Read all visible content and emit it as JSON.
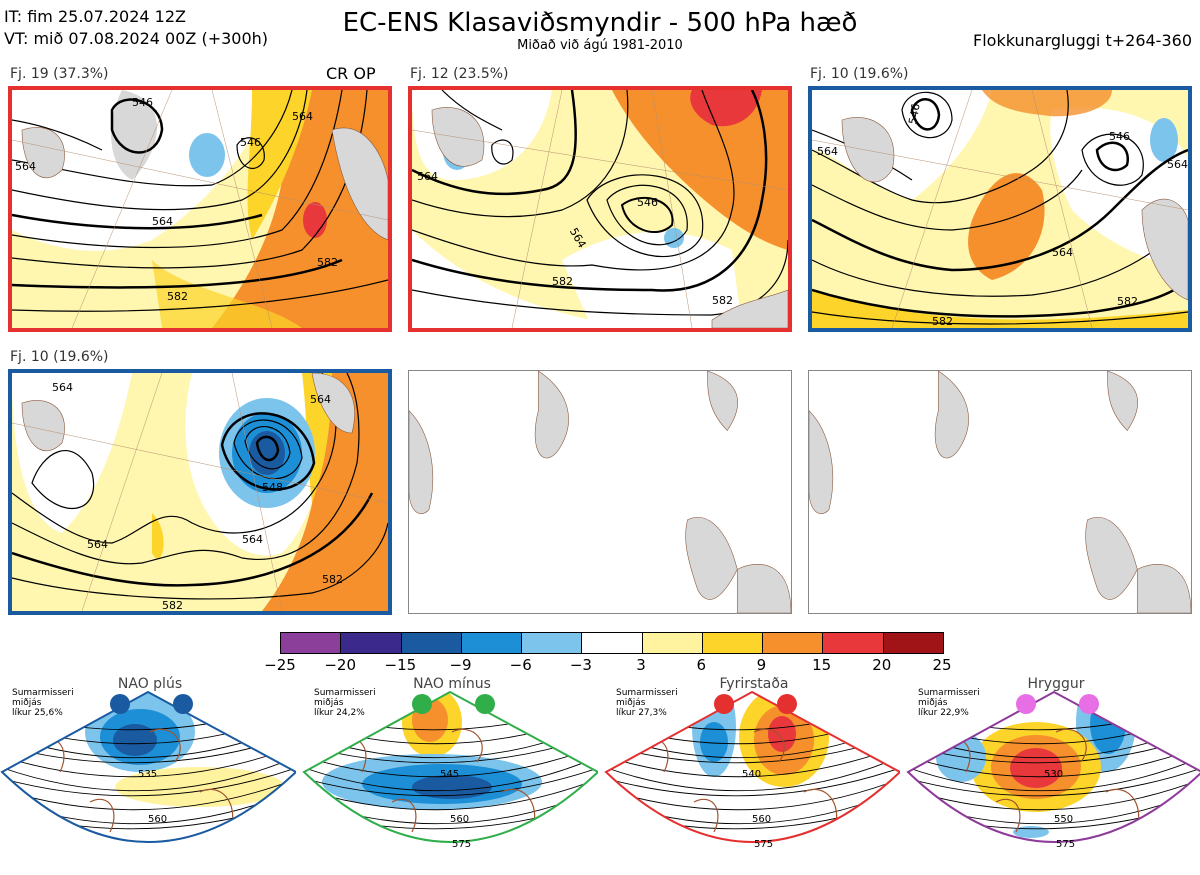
{
  "header": {
    "it_line": "IT: fim 25.07.2024 12Z",
    "vt_line": "VT: mið 07.08.2024 00Z  (+300h)",
    "title": "EC-ENS Klasaviðsmyndir - 500 hPa hæð",
    "subtitle": "Miðað við ágú 1981-2010",
    "window": "Flokkunargluggi t+264-360"
  },
  "panels": [
    {
      "label": "Fj. 19 (37.3%)",
      "extra": "CR OP",
      "border": "#e53030"
    },
    {
      "label": "Fj. 12 (23.5%)",
      "extra": "",
      "border": "#e53030"
    },
    {
      "label": "Fj. 10 (19.6%)",
      "extra": "",
      "border": "#1a5aa0"
    },
    {
      "label": "Fj. 10 (19.6%)",
      "extra": "",
      "border": "#1a5aa0"
    }
  ],
  "contour_labels": {
    "p1": [
      "546",
      "546",
      "564",
      "582",
      "582",
      "564",
      "564",
      "564"
    ],
    "p2": [
      "546",
      "564",
      "582",
      "582",
      "564"
    ],
    "p3": [
      "546",
      "546",
      "564",
      "582",
      "582",
      "564",
      "564"
    ],
    "p4": [
      "548",
      "564",
      "564",
      "582",
      "582",
      "564",
      "564"
    ]
  },
  "colorbar": {
    "colors": [
      "#8c3f9a",
      "#3b2a8c",
      "#1a5aa0",
      "#1d8fd6",
      "#7cc4ec",
      "#ffffff",
      "#fff3a0",
      "#fcd42a",
      "#f5902c",
      "#e8383c",
      "#a01418"
    ],
    "labels": [
      "−25",
      "−20",
      "−15",
      "−9",
      "−6",
      "−3",
      "3",
      "6",
      "9",
      "15",
      "20",
      "25"
    ]
  },
  "regimes": [
    {
      "title": "NAO plús",
      "season": "Sumarmisseri",
      "mean": "miðjás",
      "prob": "líkur 25,6%",
      "dot_color": "#1a5aa0",
      "border": "#1a5aa0",
      "labels": [
        "535",
        "560"
      ]
    },
    {
      "title": "NAO mínus",
      "season": "Sumarmisseri",
      "mean": "miðjás",
      "prob": "líkur 24,2%",
      "dot_color": "#2fae4a",
      "border": "#2fae4a",
      "labels": [
        "545",
        "560",
        "575"
      ]
    },
    {
      "title": "Fyrirstaða",
      "season": "Sumarmisseri",
      "mean": "miðjás",
      "prob": "líkur 27,3%",
      "dot_color": "#e53030",
      "border": "#e53030",
      "labels": [
        "540",
        "560",
        "575"
      ]
    },
    {
      "title": "Hryggur",
      "season": "Sumarmisseri",
      "mean": "miðjás",
      "prob": "líkur 22,9%",
      "dot_color": "#e86ee6",
      "border": "#8e3a9a",
      "labels": [
        "530",
        "550",
        "575"
      ]
    }
  ]
}
